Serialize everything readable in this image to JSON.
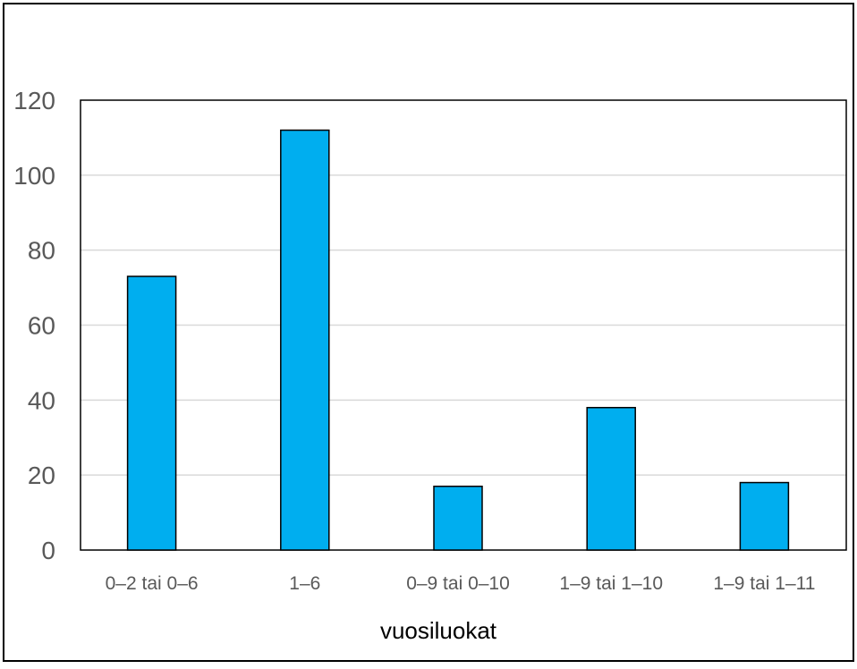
{
  "chart_data": {
    "type": "bar",
    "title": "",
    "xlabel": "vuosiluokat",
    "ylabel": "",
    "categories": [
      "0–2 tai 0–6",
      "1–6",
      "0–9 tai 0–10",
      "1–9 tai 1–10",
      "1–9 tai 1–11"
    ],
    "values": [
      73,
      112,
      17,
      38,
      18
    ],
    "ylim": [
      0,
      120
    ],
    "yticks": [
      "0",
      "20",
      "40",
      "60",
      "80",
      "100",
      "120"
    ],
    "grid": true,
    "legend": "none",
    "bar_color": "#00AEEF",
    "bar_edge_color": "#000000",
    "grid_color": "#D9D9D9",
    "tick_label_color": "#595959",
    "frame_color": "#000000"
  }
}
